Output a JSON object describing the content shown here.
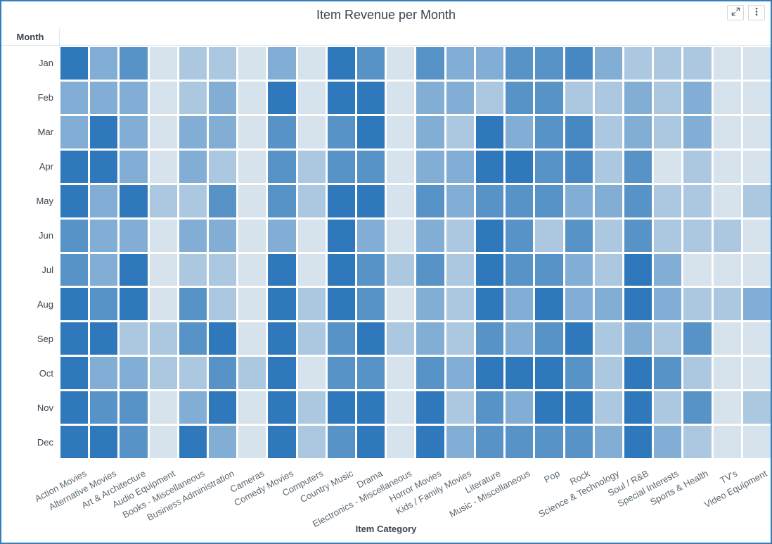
{
  "header": {
    "title": "Item Revenue per Month",
    "expand_icon": "expand-arrows",
    "menu_icon": "vertical-ellipsis"
  },
  "colors": {
    "widget_border": "#3080c0",
    "title_text": "#3b4450",
    "tick_text": "#5b6770",
    "grid_gap": "#ffffff"
  },
  "chart_data": {
    "type": "heatmap",
    "title": "Item Revenue per Month",
    "xlabel": "Item Category",
    "ylabel": "Month",
    "legend": "none (no numeric color legend shown)",
    "values_note": "cell shading estimated from pixels on a 0-1 relative intensity scale",
    "color_scale": {
      "min_color": "#d6e2ec",
      "max_color": "#2e78bb"
    },
    "x_categories": [
      "Action Movies",
      "Alternative Movies",
      "Art & Architecture",
      "Audio Equipment",
      "Books - Miscellaneous",
      "Business Administration",
      "Cameras",
      "Comedy Movies",
      "Computers",
      "Country Music",
      "Drama",
      "Electronics - Miscellaneous",
      "Horror Movies",
      "Kids / Family Movies",
      "Literature",
      "Music - Miscellaneous",
      "Pop",
      "Rock",
      "Science & Technology",
      "Soul / R&B",
      "Special Interests",
      "Sports & Health",
      "TV's",
      "Video Equipment"
    ],
    "y_categories": [
      "Jan",
      "Feb",
      "Mar",
      "Apr",
      "May",
      "Jun",
      "Jul",
      "Aug",
      "Sep",
      "Oct",
      "Nov",
      "Dec"
    ],
    "values": [
      [
        1,
        0.5,
        0.75,
        0,
        0.25,
        0.25,
        0,
        0.5,
        0,
        1,
        0.75,
        0,
        0.75,
        0.5,
        0.5,
        0.75,
        0.75,
        0.85,
        0.5,
        0.25,
        0.25,
        0.25,
        0,
        0
      ],
      [
        0.5,
        0.5,
        0.5,
        0,
        0.25,
        0.5,
        0,
        1,
        0,
        1,
        1,
        0,
        0.5,
        0.5,
        0.25,
        0.75,
        0.75,
        0.25,
        0.25,
        0.5,
        0.25,
        0.5,
        0,
        0
      ],
      [
        0.5,
        1,
        0.5,
        0,
        0.5,
        0.5,
        0,
        0.75,
        0,
        0.75,
        1,
        0,
        0.5,
        0.25,
        1,
        0.5,
        0.75,
        0.85,
        0.25,
        0.5,
        0.25,
        0.5,
        0,
        0
      ],
      [
        1,
        1,
        0.5,
        0,
        0.5,
        0.25,
        0,
        0.75,
        0.25,
        0.75,
        0.75,
        0,
        0.5,
        0.5,
        1,
        1,
        0.75,
        0.85,
        0.25,
        0.75,
        0,
        0.25,
        0,
        0
      ],
      [
        1,
        0.5,
        1,
        0.25,
        0.25,
        0.75,
        0,
        0.75,
        0.25,
        1,
        1,
        0,
        0.75,
        0.5,
        0.75,
        0.75,
        0.75,
        0.5,
        0.5,
        0.75,
        0.25,
        0.25,
        0,
        0.25
      ],
      [
        0.75,
        0.5,
        0.5,
        0,
        0.5,
        0.5,
        0,
        0.5,
        0,
        1,
        0.5,
        0,
        0.5,
        0.25,
        1,
        0.75,
        0.25,
        0.75,
        0.25,
        0.75,
        0.25,
        0.25,
        0.25,
        0
      ],
      [
        0.75,
        0.5,
        1,
        0,
        0.25,
        0.25,
        0,
        1,
        0,
        1,
        0.75,
        0.25,
        0.75,
        0.25,
        1,
        0.75,
        0.75,
        0.5,
        0.25,
        1,
        0.5,
        0,
        0,
        0
      ],
      [
        1,
        0.75,
        1,
        0,
        0.75,
        0.25,
        0,
        1,
        0.25,
        1,
        0.75,
        0,
        0.5,
        0.25,
        1,
        0.5,
        1,
        0.5,
        0.5,
        1,
        0.5,
        0.25,
        0.25,
        0.5
      ],
      [
        1,
        1,
        0.25,
        0.25,
        0.75,
        1,
        0,
        1,
        0.25,
        0.75,
        1,
        0.25,
        0.5,
        0.25,
        0.75,
        0.5,
        0.75,
        1,
        0.25,
        0.5,
        0.25,
        0.75,
        0,
        0
      ],
      [
        1,
        0.5,
        0.5,
        0.25,
        0.25,
        0.75,
        0.25,
        1,
        0,
        0.75,
        0.75,
        0,
        0.75,
        0.5,
        1,
        1,
        1,
        0.75,
        0.25,
        1,
        0.75,
        0.25,
        0,
        0
      ],
      [
        1,
        0.75,
        0.75,
        0,
        0.5,
        1,
        0,
        1,
        0.25,
        1,
        1,
        0,
        1,
        0.25,
        0.75,
        0.5,
        1,
        1,
        0.25,
        1,
        0.25,
        0.75,
        0,
        0.25
      ],
      [
        1,
        1,
        0.75,
        0,
        1,
        0.5,
        0,
        1,
        0.25,
        0.75,
        1,
        0,
        1,
        0.5,
        0.75,
        0.75,
        0.75,
        0.75,
        0.5,
        1,
        0.5,
        0.25,
        0,
        0
      ]
    ]
  }
}
